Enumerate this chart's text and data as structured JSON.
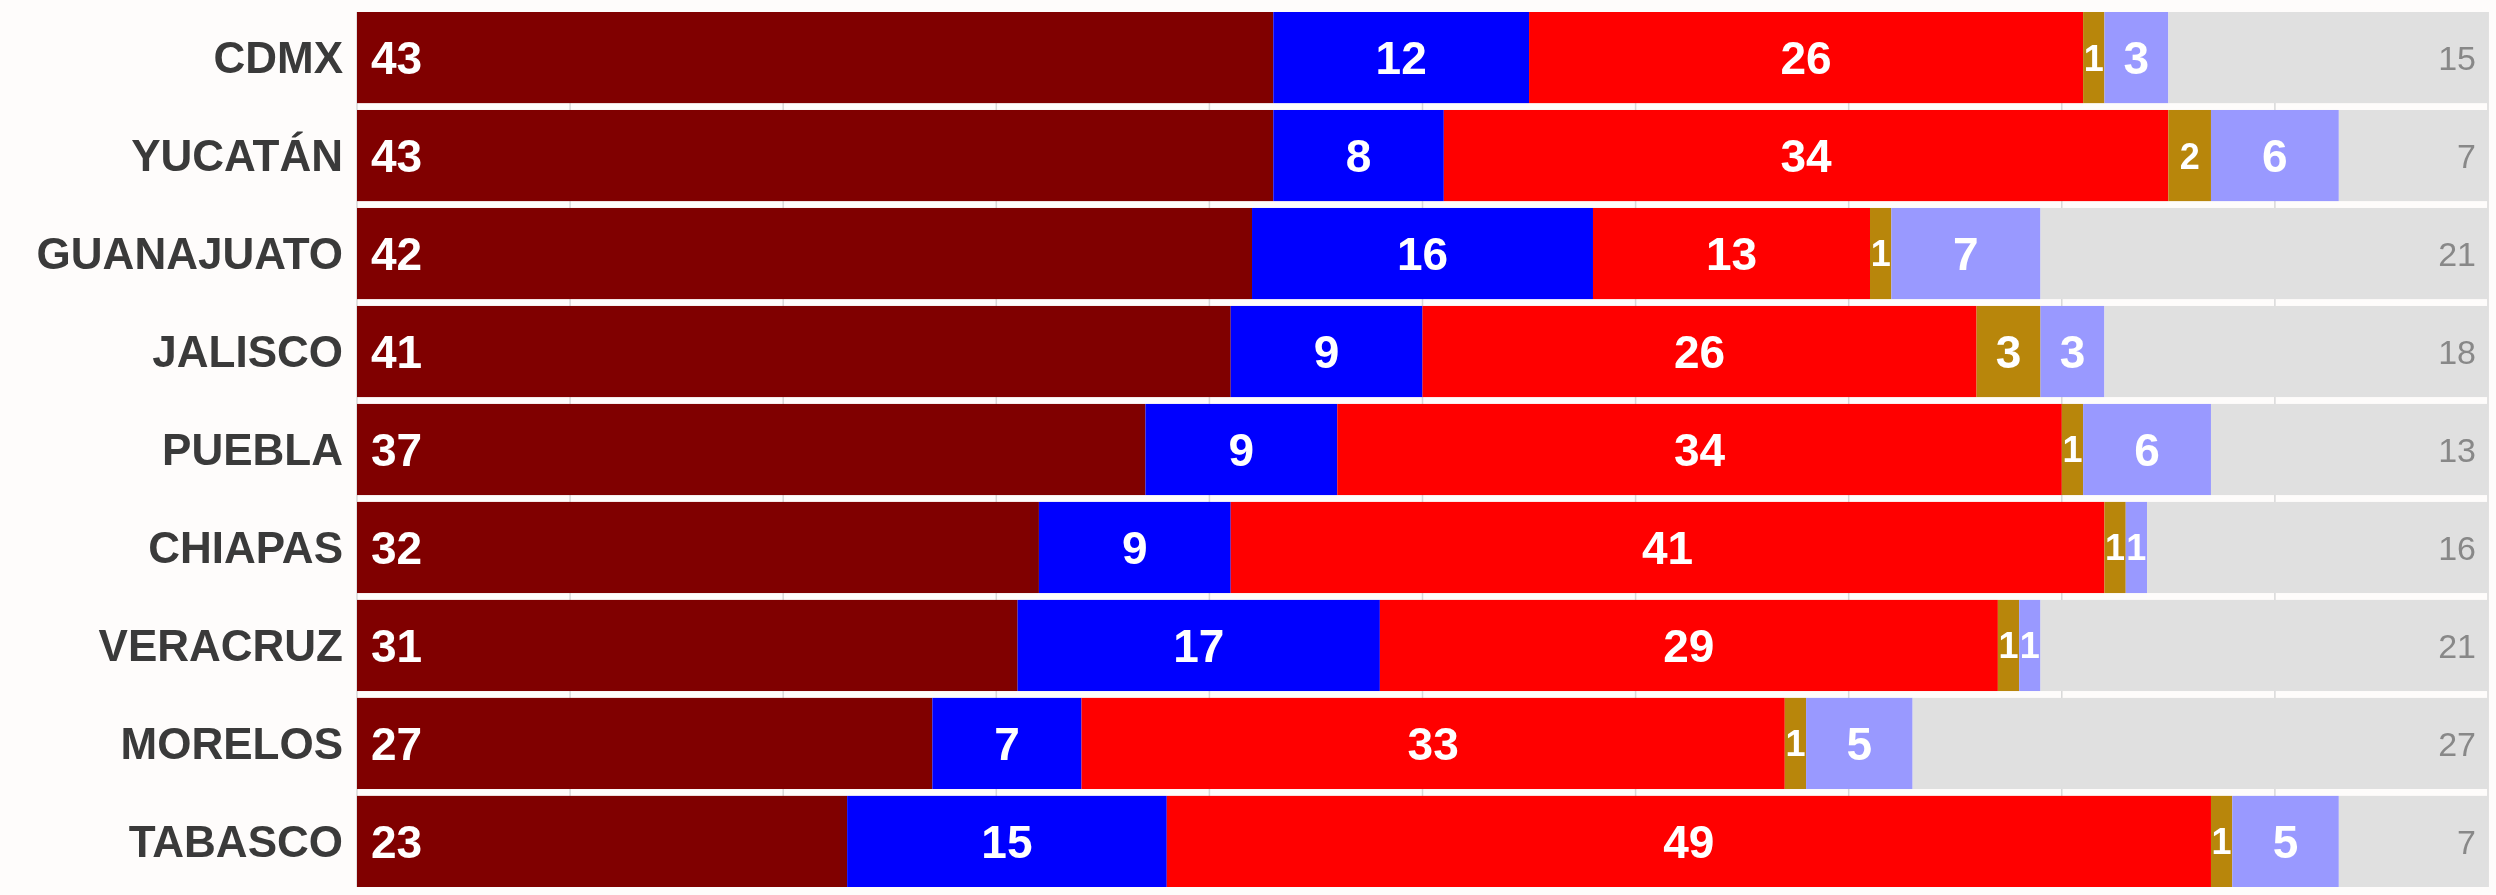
{
  "chart_data": {
    "type": "bar",
    "orientation": "horizontal",
    "stacked": true,
    "data_labels": true,
    "grid": "x",
    "categories": [
      "CDMX",
      "YUCATÁN",
      "GUANAJUATO",
      "JALISCO",
      "PUEBLA",
      "CHIAPAS",
      "VERACRUZ",
      "MORELOS",
      "TABASCO"
    ],
    "xlim": [
      0,
      100
    ],
    "xticks": [
      {
        "value": 0,
        "label": null
      },
      {
        "value": 10,
        "label": null
      },
      {
        "value": 20,
        "label": null
      },
      {
        "value": 30,
        "label": null
      },
      {
        "value": 40,
        "label": null
      },
      {
        "value": 50,
        "label": null
      },
      {
        "value": 60,
        "label": null
      },
      {
        "value": 70,
        "label": null
      },
      {
        "value": 80,
        "label": null
      },
      {
        "value": 90,
        "label": null
      },
      {
        "value": 100,
        "label": null
      }
    ],
    "series": [
      {
        "color": "#800000",
        "values": [
          43,
          43,
          42,
          41,
          37,
          32,
          31,
          27,
          23
        ]
      },
      {
        "color": "#0000ff",
        "values": [
          12,
          8,
          16,
          9,
          9,
          9,
          17,
          7,
          15
        ]
      },
      {
        "color": "#ff0000",
        "values": [
          26,
          34,
          13,
          26,
          34,
          41,
          29,
          33,
          49
        ]
      },
      {
        "color": "#b8860b",
        "values": [
          1,
          2,
          1,
          3,
          1,
          1,
          1,
          1,
          1
        ]
      },
      {
        "color": "#9999ff",
        "values": [
          3,
          6,
          7,
          3,
          6,
          1,
          1,
          5,
          5
        ]
      },
      {
        "color": "#e0e0e0",
        "values": [
          15,
          7,
          21,
          18,
          13,
          16,
          21,
          27,
          7
        ]
      }
    ]
  }
}
